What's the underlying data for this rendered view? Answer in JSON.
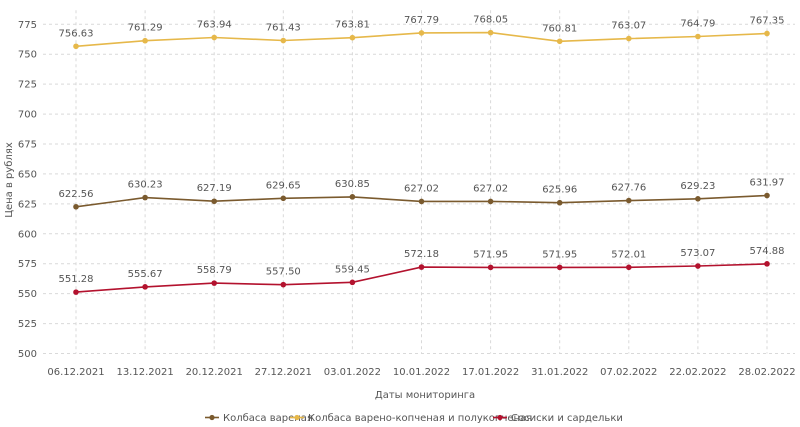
{
  "chart_data": {
    "type": "line",
    "xlabel": "Даты мониторинга",
    "ylabel": "Цена в рублях",
    "ylim": [
      500,
      775
    ],
    "yticks": [
      500,
      525,
      550,
      575,
      600,
      625,
      650,
      675,
      700,
      725,
      750,
      775
    ],
    "grid": true,
    "legend_position": "bottom",
    "categories": [
      "06.12.2021",
      "13.12.2021",
      "20.12.2021",
      "27.12.2021",
      "03.01.2022",
      "10.01.2022",
      "17.01.2022",
      "31.01.2022",
      "07.02.2022",
      "22.02.2022",
      "28.02.2022"
    ],
    "series": [
      {
        "name": "Колбаса вареная",
        "color": "#7a5a2e",
        "values": [
          622.56,
          630.23,
          627.19,
          629.65,
          630.85,
          627.02,
          627.02,
          625.96,
          627.76,
          629.23,
          631.97
        ],
        "labels": [
          "622.56",
          "630.23",
          "627.19",
          "629.65",
          "630.85",
          "627.02",
          "627.02",
          "625.96",
          "627.76",
          "629.23",
          "631.97"
        ]
      },
      {
        "name": "Колбаса варено-копченая и полукопченая",
        "color": "#e6b84a",
        "values": [
          756.63,
          761.29,
          763.94,
          761.43,
          763.81,
          767.79,
          768.05,
          760.81,
          763.07,
          764.79,
          767.35
        ],
        "labels": [
          "756.63",
          "761.29",
          "763.94",
          "761.43",
          "763.81",
          "767.79",
          "768.05",
          "760.81",
          "763.07",
          "764.79",
          "767.35"
        ]
      },
      {
        "name": "Сосиски и сардельки",
        "color": "#b3122e",
        "values": [
          551.28,
          555.67,
          558.79,
          557.5,
          559.45,
          572.18,
          571.95,
          571.95,
          572.01,
          573.07,
          574.88
        ],
        "labels": [
          "551.28",
          "555.67",
          "558.79",
          "557.50",
          "559.45",
          "572.18",
          "571.95",
          "571.95",
          "572.01",
          "573.07",
          "574.88"
        ]
      }
    ]
  }
}
